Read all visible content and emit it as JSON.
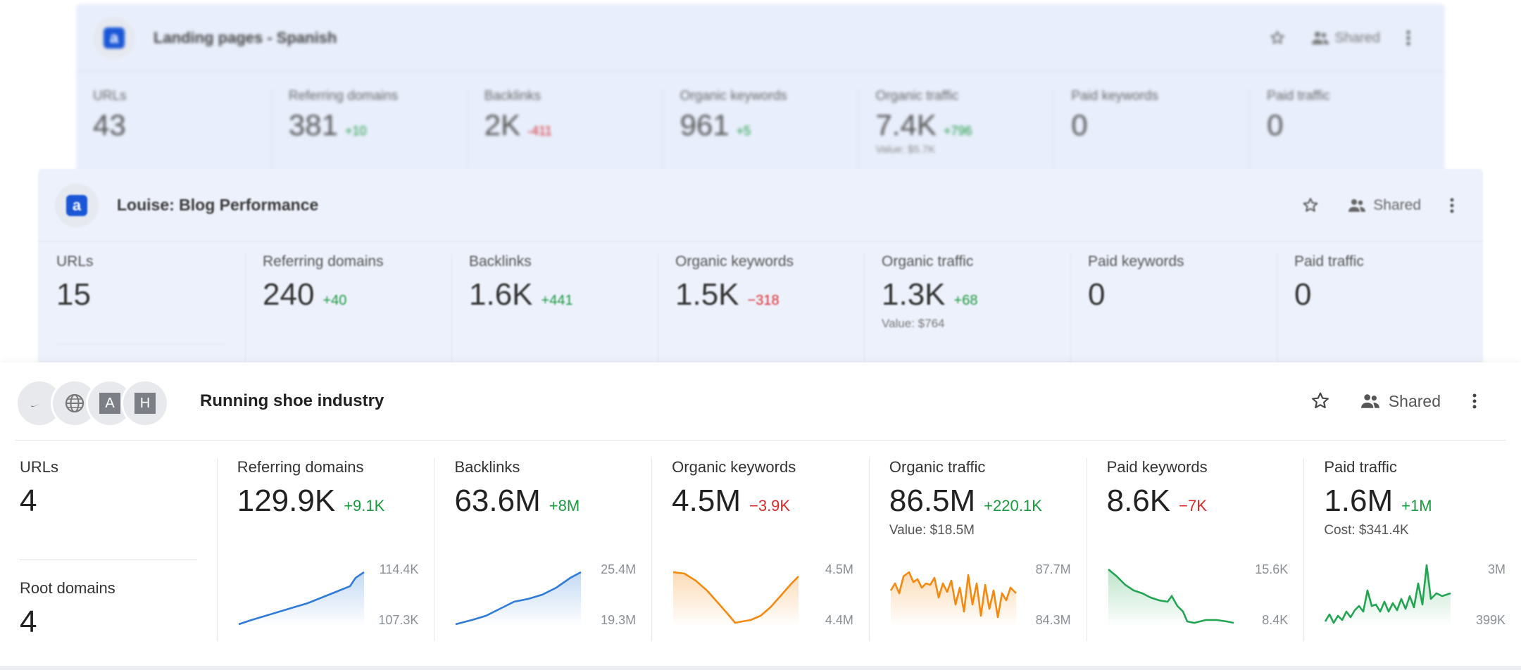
{
  "cards": [
    {
      "title": "Landing pages - Spanish",
      "shared_label": "Shared",
      "metrics": [
        {
          "label": "URLs",
          "value": "43",
          "delta": "",
          "sub": ""
        },
        {
          "label": "Referring domains",
          "value": "381",
          "delta": "+10",
          "sub": ""
        },
        {
          "label": "Backlinks",
          "value": "2K",
          "delta": "-411",
          "sub": ""
        },
        {
          "label": "Organic keywords",
          "value": "961",
          "delta": "+5",
          "sub": ""
        },
        {
          "label": "Organic traffic",
          "value": "7.4K",
          "delta": "+796",
          "sub": "Value: $5.7K"
        },
        {
          "label": "Paid keywords",
          "value": "0",
          "delta": "",
          "sub": ""
        },
        {
          "label": "Paid traffic",
          "value": "0",
          "delta": "",
          "sub": ""
        }
      ]
    },
    {
      "title": "Louise: Blog Performance",
      "shared_label": "Shared",
      "metrics": [
        {
          "label": "URLs",
          "value": "15",
          "delta": "",
          "sub": ""
        },
        {
          "label": "Referring domains",
          "value": "240",
          "delta": "+40",
          "sub": ""
        },
        {
          "label": "Backlinks",
          "value": "1.6K",
          "delta": "+441",
          "sub": ""
        },
        {
          "label": "Organic keywords",
          "value": "1.5K",
          "delta": "−318",
          "sub": ""
        },
        {
          "label": "Organic traffic",
          "value": "1.3K",
          "delta": "+68",
          "sub": "Value: $764"
        },
        {
          "label": "Paid keywords",
          "value": "0",
          "delta": "",
          "sub": ""
        },
        {
          "label": "Paid traffic",
          "value": "0",
          "delta": "",
          "sub": ""
        }
      ]
    },
    {
      "title": "Running shoe industry",
      "shared_label": "Shared",
      "favicons": [
        "nike-logo",
        "globe-icon",
        "A",
        "H"
      ],
      "root_domains": {
        "label": "Root domains",
        "value": "4"
      },
      "metrics": [
        {
          "label": "URLs",
          "value": "4",
          "delta": "",
          "sub": ""
        },
        {
          "label": "Referring domains",
          "value": "129.9K",
          "delta": "+9.1K",
          "sub": "",
          "max": "114.4K",
          "min": "107.3K"
        },
        {
          "label": "Backlinks",
          "value": "63.6M",
          "delta": "+8M",
          "sub": "",
          "max": "25.4M",
          "min": "19.3M"
        },
        {
          "label": "Organic keywords",
          "value": "4.5M",
          "delta": "−3.9K",
          "sub": "",
          "max": "4.5M",
          "min": "4.4M"
        },
        {
          "label": "Organic traffic",
          "value": "86.5M",
          "delta": "+220.1K",
          "sub": "Value: $18.5M",
          "max": "87.7M",
          "min": "84.3M"
        },
        {
          "label": "Paid keywords",
          "value": "8.6K",
          "delta": "−7K",
          "sub": "",
          "max": "15.6K",
          "min": "8.4K"
        },
        {
          "label": "Paid traffic",
          "value": "1.6M",
          "delta": "+1M",
          "sub": "Cost: $341.4K",
          "max": "3M",
          "min": "399K"
        }
      ]
    }
  ],
  "colors": {
    "positive": "#1a9a3f",
    "negative": "#d9292b",
    "blue_line": "#2f7bd6",
    "orange_line": "#f5890f",
    "green_line": "#22a552",
    "logo_blue": "#1a56d6"
  }
}
